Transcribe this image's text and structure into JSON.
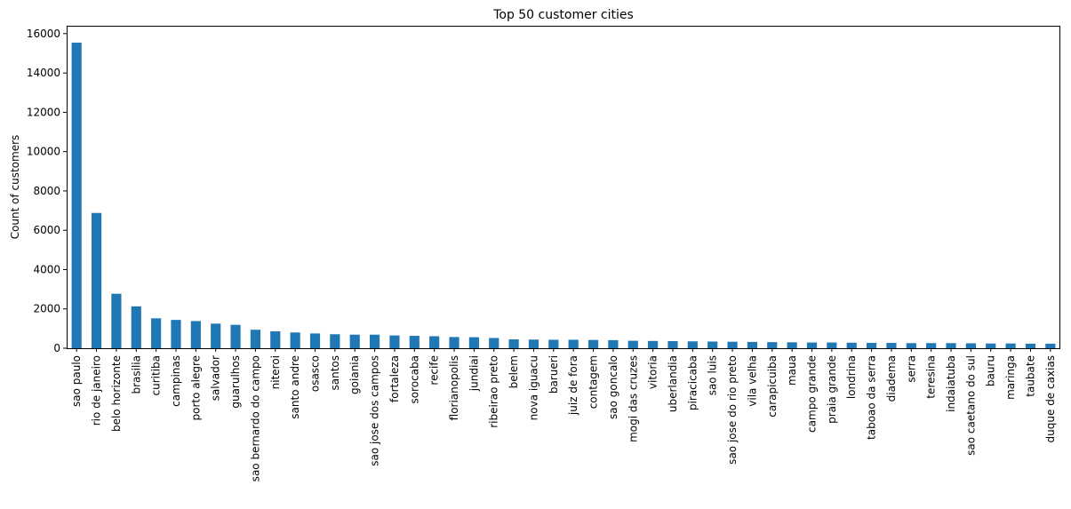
{
  "chart_data": {
    "type": "bar",
    "title": "Top 50 customer cities",
    "xlabel": "",
    "ylabel": "Count of customers",
    "ylim": [
      0,
      16400
    ],
    "yticks": [
      0,
      2000,
      4000,
      6000,
      8000,
      10000,
      12000,
      14000,
      16000
    ],
    "grid": false,
    "bar_color": "#1f77b4",
    "categories": [
      "sao paulo",
      "rio de janeiro",
      "belo horizonte",
      "brasilia",
      "curitiba",
      "campinas",
      "porto alegre",
      "salvador",
      "guarulhos",
      "sao bernardo do campo",
      "niteroi",
      "santo andre",
      "osasco",
      "santos",
      "goiania",
      "sao jose dos campos",
      "fortaleza",
      "sorocaba",
      "recife",
      "florianopolis",
      "jundiai",
      "ribeirao preto",
      "belem",
      "nova iguacu",
      "barueri",
      "juiz de fora",
      "contagem",
      "sao goncalo",
      "mogi das cruzes",
      "vitoria",
      "uberlandia",
      "piracicaba",
      "sao luis",
      "sao jose do rio preto",
      "vila velha",
      "carapicuiba",
      "maua",
      "campo grande",
      "praia grande",
      "londrina",
      "taboao da serra",
      "diadema",
      "serra",
      "teresina",
      "indaiatuba",
      "sao caetano do sul",
      "bauru",
      "maringa",
      "taubate",
      "duque de caxias"
    ],
    "values": [
      15540,
      6880,
      2770,
      2130,
      1520,
      1440,
      1380,
      1250,
      1190,
      940,
      860,
      800,
      750,
      710,
      690,
      690,
      650,
      630,
      610,
      570,
      560,
      520,
      450,
      440,
      430,
      430,
      420,
      410,
      380,
      370,
      360,
      350,
      340,
      330,
      320,
      310,
      300,
      290,
      290,
      280,
      270,
      270,
      260,
      260,
      260,
      250,
      240,
      240,
      230,
      230
    ]
  }
}
